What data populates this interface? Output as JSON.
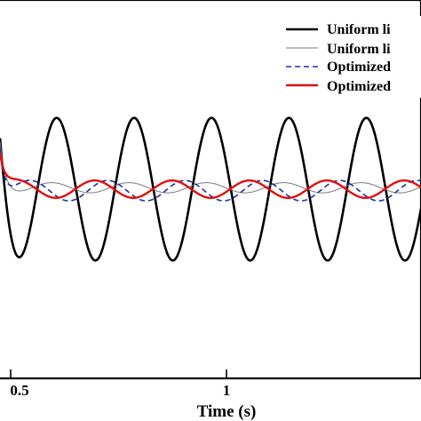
{
  "chart_data": {
    "type": "line",
    "xlabel": "Time (s)",
    "ylabel": "",
    "xlim": [
      0.48,
      1.46
    ],
    "ylim": [
      -2.6,
      2.6
    ],
    "x_ticks": [
      {
        "value": 0.5,
        "label": "0.5"
      },
      {
        "value": 1.0,
        "label": "1"
      }
    ],
    "grid": false,
    "legend_position": "top-right",
    "series": [
      {
        "name": "Uniform li",
        "color": "#000000",
        "width": 2.6,
        "dash": "",
        "freq_hz": 5.55,
        "amp": 0.98,
        "phase_x": 0.612,
        "offset": 0.0,
        "start_y": 0.7
      },
      {
        "name": "Uniform li",
        "color": "#7a7a7a",
        "width": 1.0,
        "dash": "",
        "freq_hz": 5.55,
        "amp": 0.07,
        "phase_x": 0.6,
        "offset": 0.02,
        "start_y": 0.65
      },
      {
        "name": "Optimized",
        "color": "#1f2fa8",
        "width": 1.6,
        "dash": "6,4",
        "freq_hz": 5.55,
        "amp": 0.14,
        "phase_x": 0.55,
        "offset": -0.02,
        "start_y": 0.55
      },
      {
        "name": "Optimized",
        "color": "#e01010",
        "width": 2.4,
        "dash": "",
        "freq_hz": 5.55,
        "amp": 0.12,
        "phase_x": 0.52,
        "offset": 0.0,
        "start_y": 0.5
      }
    ]
  }
}
